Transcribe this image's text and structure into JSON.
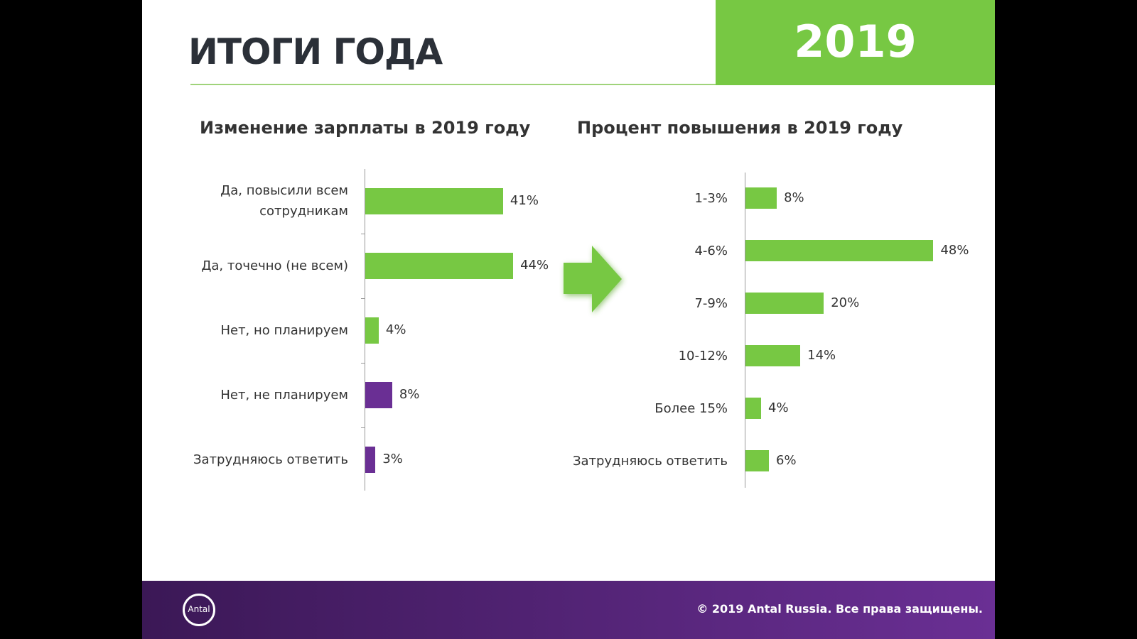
{
  "header": {
    "title": "ИТОГИ ГОДА",
    "year": "2019"
  },
  "footer": {
    "logo": "Antal",
    "copyright": "© 2019 Antal Russia. Все права защищены."
  },
  "chart_data": [
    {
      "type": "bar",
      "orientation": "horizontal",
      "title": "Изменение зарплаты в 2019 году",
      "categories": [
        "Да, повысили всем сотрудникам",
        "Да, точечно (не всем)",
        "Нет, но планируем",
        "Нет, не планируем",
        "Затрудняюсь ответить"
      ],
      "values": [
        41,
        44,
        4,
        8,
        3
      ],
      "value_labels": [
        "41%",
        "44%",
        "4%",
        "8%",
        "3%"
      ],
      "colors": [
        "#77c843",
        "#77c843",
        "#77c843",
        "#6a2f94",
        "#6a2f94"
      ]
    },
    {
      "type": "bar",
      "orientation": "horizontal",
      "title": "Процент повышения в 2019 году",
      "categories": [
        "1-3%",
        "4-6%",
        "7-9%",
        "10-12%",
        "Более 15%",
        "Затрудняюсь ответить"
      ],
      "values": [
        8,
        48,
        20,
        14,
        4,
        6
      ],
      "value_labels": [
        "8%",
        "48%",
        "20%",
        "14%",
        "4%",
        "6%"
      ],
      "colors": [
        "#77c843",
        "#77c843",
        "#77c843",
        "#77c843",
        "#77c843",
        "#77c843"
      ]
    }
  ]
}
